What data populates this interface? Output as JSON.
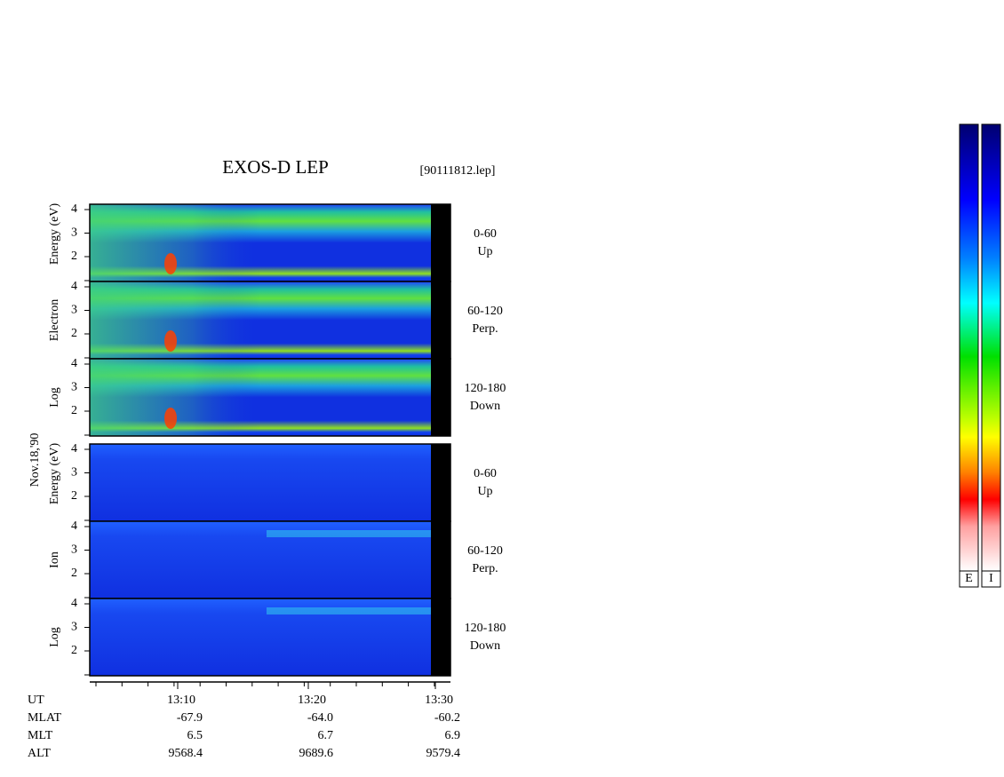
{
  "header": {
    "title": "EXOS-D LEP",
    "file": "[90111812.lep]"
  },
  "date": "Nov.18,'90",
  "groups": [
    {
      "label_parts": [
        "Log",
        "Electron",
        "Energy (eV)"
      ]
    },
    {
      "label_parts": [
        "Log",
        "Ion",
        "Energy (eV)"
      ]
    }
  ],
  "energy_ticks": [
    "4",
    "3",
    "2"
  ],
  "pitch_angles": [
    {
      "range": "0-60",
      "direction": "Up"
    },
    {
      "range": "60-120",
      "direction": "Perp."
    },
    {
      "range": "120-180",
      "direction": "Down"
    }
  ],
  "time_ticks": [
    "13:10",
    "13:20",
    "13:30"
  ],
  "orbit_rows": [
    {
      "label": "UT"
    },
    {
      "label": "MLAT",
      "values": [
        "-67.9",
        "-64.0",
        "-60.2"
      ]
    },
    {
      "label": "MLT",
      "values": [
        "6.5",
        "6.7",
        "6.9"
      ]
    },
    {
      "label": "ALT",
      "values": [
        "9568.4",
        "9689.6",
        "9579.4"
      ]
    }
  ],
  "colorbar_labels": [
    "E",
    "I"
  ]
}
